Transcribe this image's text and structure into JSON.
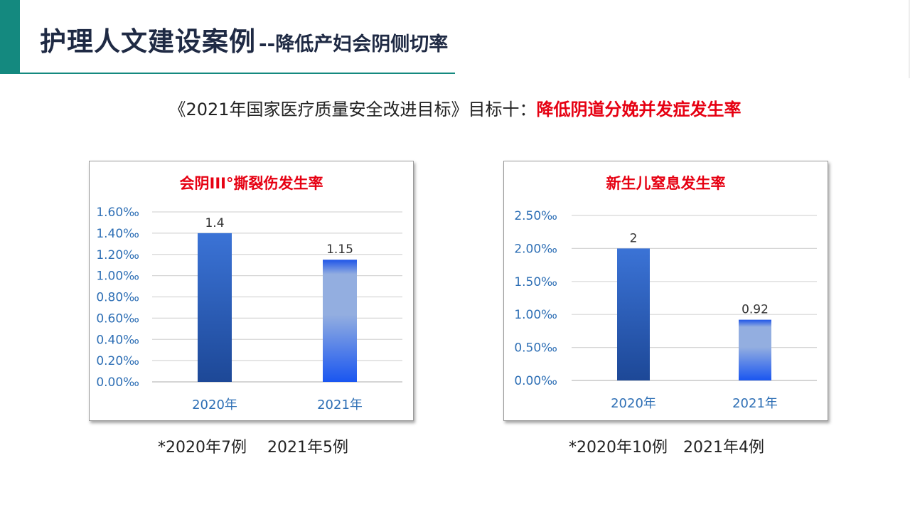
{
  "header": {
    "title_main": "护理人文建设案例",
    "title_sep": "--",
    "title_sub": "降低产妇会阴侧切率"
  },
  "subtitle": {
    "prefix": "《2021年国家医疗质量安全改进目标》目标十：",
    "highlight": "降低阴道分娩并发症发生率"
  },
  "colors": {
    "accent": "#14897f",
    "title_text": "#1f2a44",
    "highlight": "#e60012",
    "axis_text": "#2e6fb5",
    "bar_2020_top": "#3b73d6",
    "bar_2020_bottom": "#1d4897",
    "bar_2021_top": "#1f55e8",
    "bar_2021_mid": "#93aee0",
    "bar_2021_bottom": "#1a56f0"
  },
  "chart_data": [
    {
      "type": "bar",
      "title": "会阴III°撕裂伤发生率",
      "categories": [
        "2020年",
        "2021年"
      ],
      "values": [
        1.4,
        1.15
      ],
      "value_labels": [
        "1.4",
        "1.15"
      ],
      "ylim": [
        0,
        1.6
      ],
      "yticks": [
        0,
        0.2,
        0.4,
        0.6,
        0.8,
        1.0,
        1.2,
        1.4,
        1.6
      ],
      "ytick_labels": [
        "0.00‰",
        "0.20‰",
        "0.40‰",
        "0.60‰",
        "0.80‰",
        "1.00‰",
        "1.20‰",
        "1.40‰",
        "1.60‰"
      ],
      "grid": true,
      "legend": "none"
    },
    {
      "type": "bar",
      "title": "新生儿窒息发生率",
      "categories": [
        "2020年",
        "2021年"
      ],
      "values": [
        2,
        0.92
      ],
      "value_labels": [
        "2",
        "0.92"
      ],
      "ylim": [
        0,
        2.5
      ],
      "yticks": [
        0,
        0.5,
        1.0,
        1.5,
        2.0,
        2.5
      ],
      "ytick_labels": [
        "0.00‰",
        "0.50‰",
        "1.00‰",
        "1.50‰",
        "2.00‰",
        "2.50‰"
      ],
      "grid": true,
      "legend": "none"
    }
  ],
  "notes": [
    "*2020年7例　 2021年5例",
    "*2020年10例　2021年4例"
  ]
}
